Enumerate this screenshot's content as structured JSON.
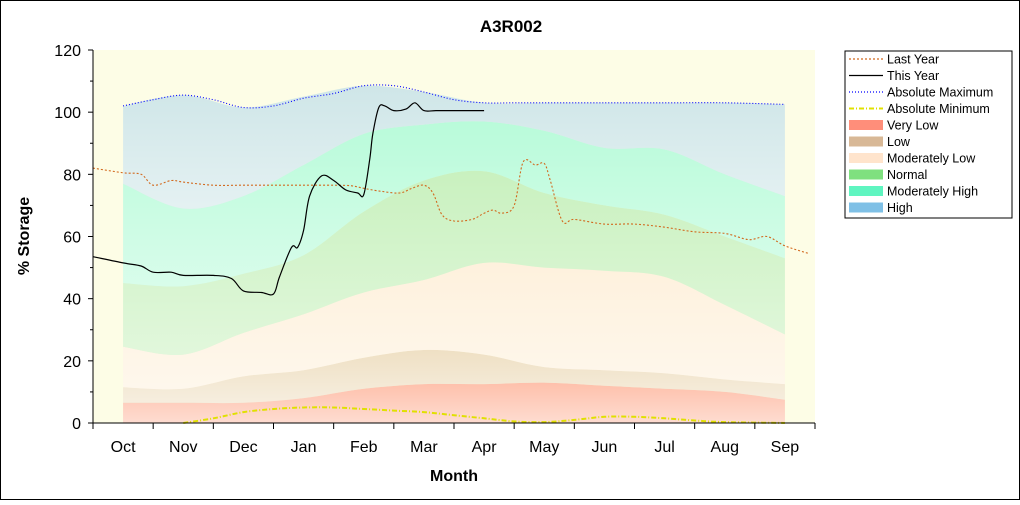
{
  "chart_data": {
    "type": "area",
    "title": "A3R002",
    "xlabel": "Month",
    "ylabel": "% Storage",
    "ylim": [
      0,
      120
    ],
    "yticks": [
      0,
      20,
      40,
      60,
      80,
      100,
      120
    ],
    "xlim": [
      -0.5,
      11.5
    ],
    "categories": [
      "Oct",
      "Nov",
      "Dec",
      "Jan",
      "Feb",
      "Mar",
      "Apr",
      "May",
      "Jun",
      "Jul",
      "Aug",
      "Sep"
    ],
    "legend_position": "right",
    "bands": [
      {
        "name": "Very Low",
        "color": "#ff8e7a",
        "x": [
          0,
          1,
          2,
          3,
          4,
          5,
          6,
          7,
          8,
          9,
          10,
          11
        ],
        "lower": [
          0,
          0,
          0,
          0,
          0,
          0,
          0,
          0,
          0,
          0,
          0,
          0
        ],
        "upper": [
          6.5,
          6.5,
          6.5,
          8,
          11,
          12.5,
          12.5,
          13,
          12,
          11,
          10,
          7.5
        ]
      },
      {
        "name": "Low",
        "color": "#e3c9a8",
        "x": [
          0,
          1,
          2,
          3,
          4,
          5,
          6,
          7,
          8,
          9,
          10,
          11
        ],
        "lower": [
          6.5,
          6.5,
          6.5,
          8,
          11,
          12.5,
          12.5,
          13,
          12,
          11,
          10,
          7.5
        ],
        "upper": [
          11.5,
          11,
          15,
          17,
          21,
          23.5,
          22,
          18,
          17,
          16,
          14,
          12.5
        ]
      },
      {
        "name": "Moderately Low",
        "color": "#ffe8d6",
        "x": [
          0,
          1,
          2,
          3,
          4,
          5,
          6,
          7,
          8,
          9,
          10,
          11
        ],
        "lower": [
          11.5,
          11,
          15,
          17,
          21,
          23.5,
          22,
          18,
          17,
          16,
          14,
          12.5
        ],
        "upper": [
          24.5,
          22,
          29,
          35,
          42,
          46,
          51.5,
          50,
          49,
          47,
          38,
          28.5
        ]
      },
      {
        "name": "Normal",
        "color": "#9ee89e",
        "x": [
          0,
          1,
          2,
          3,
          4,
          5,
          6,
          7,
          8,
          9,
          10,
          11
        ],
        "lower": [
          24.5,
          22,
          29,
          35,
          42,
          46,
          51.5,
          50,
          49,
          47,
          38,
          28.5
        ],
        "upper": [
          45,
          44,
          48,
          54,
          68,
          78,
          81,
          74,
          70,
          67,
          60,
          53
        ]
      },
      {
        "name": "Moderately High",
        "color": "#82fad0",
        "x": [
          0,
          1,
          2,
          3,
          4,
          5,
          6,
          7,
          8,
          9,
          10,
          11
        ],
        "lower": [
          45,
          44,
          48,
          54,
          68,
          78,
          81,
          74,
          70,
          67,
          60,
          53
        ],
        "upper": [
          77,
          69,
          73,
          83,
          93,
          96,
          97,
          94,
          88.5,
          88,
          80,
          73
        ]
      },
      {
        "name": "High",
        "color": "#a9d3ea",
        "x": [
          0,
          1,
          2,
          3,
          4,
          5,
          6,
          7,
          8,
          9,
          10,
          11
        ],
        "lower": [
          77,
          69,
          73,
          83,
          93,
          96,
          97,
          94,
          88.5,
          88,
          80,
          73
        ],
        "upper": [
          102,
          105.5,
          101.5,
          105,
          108.5,
          106.5,
          103,
          103,
          103,
          103,
          103,
          102.5
        ]
      }
    ],
    "series": [
      {
        "name": "Last Year",
        "color": "#d2691e",
        "style": "dotted",
        "x": [
          -0.5,
          0,
          0.3,
          0.5,
          0.8,
          1,
          1.5,
          2,
          2.5,
          3,
          3.5,
          3.8,
          4,
          4.3,
          4.6,
          4.8,
          5,
          5.15,
          5.3,
          5.5,
          5.8,
          6,
          6.15,
          6.3,
          6.5,
          6.65,
          6.85,
          7,
          7.1,
          7.3,
          7.5,
          8,
          8.5,
          9,
          9.5,
          10,
          10.4,
          10.7,
          11,
          11.4
        ],
        "values": [
          82,
          80.5,
          80,
          76.5,
          78,
          77.5,
          76.5,
          76.5,
          76.5,
          76.5,
          76.5,
          76.3,
          75.5,
          74.5,
          74,
          75.5,
          76.5,
          74,
          67,
          65,
          65.5,
          67.5,
          68.5,
          67.5,
          70,
          84,
          83,
          83.5,
          78,
          65,
          65.5,
          64,
          64,
          63,
          61.5,
          61,
          59,
          60,
          57,
          54.5
        ]
      },
      {
        "name": "This Year",
        "color": "#000000",
        "style": "solid",
        "x": [
          -0.5,
          0,
          0.3,
          0.5,
          0.8,
          1,
          1.5,
          1.8,
          2,
          2.3,
          2.5,
          2.6,
          2.8,
          2.9,
          3,
          3.1,
          3.3,
          3.5,
          3.7,
          3.9,
          4,
          4.1,
          4.15,
          4.25,
          4.35,
          4.5,
          4.7,
          4.85,
          5,
          5.2,
          5.5,
          6
        ],
        "values": [
          53.5,
          51.5,
          50.5,
          48.5,
          48.5,
          47.5,
          47.5,
          46.5,
          42.5,
          42,
          41.5,
          47,
          56.5,
          56.5,
          62,
          73,
          79.5,
          78,
          75,
          74,
          73.5,
          85,
          93,
          101.5,
          102,
          100.5,
          101,
          103,
          100.5,
          100.5,
          100.5,
          100.5
        ]
      },
      {
        "name": "Absolute Maximum",
        "color": "#0000ff",
        "style": "dotted",
        "x": [
          0,
          0.5,
          1,
          1.5,
          2,
          2.5,
          3,
          3.5,
          4,
          4.5,
          5,
          5.5,
          6,
          6.5,
          7,
          8,
          9,
          10,
          11
        ],
        "values": [
          102,
          104,
          105.5,
          104,
          101.5,
          102,
          104.5,
          106,
          108.5,
          108.5,
          106.5,
          104,
          103,
          103,
          103,
          103,
          103,
          103,
          102.5
        ]
      },
      {
        "name": "Absolute Minimum",
        "color": "#e0e000",
        "style": "dashdot",
        "x": [
          1,
          1.5,
          2,
          2.5,
          3,
          3.5,
          4,
          4.5,
          5,
          5.5,
          6,
          6.5,
          7,
          7.5,
          8,
          8.5,
          9,
          9.5,
          10,
          11
        ],
        "values": [
          0,
          1.5,
          3.5,
          4.5,
          5,
          5,
          4.5,
          4,
          3.5,
          2.5,
          1.5,
          0.5,
          0.3,
          1,
          2,
          2,
          1.5,
          0.8,
          0.3,
          0
        ]
      }
    ],
    "legend": [
      {
        "label": "Last Year",
        "kind": "line",
        "color": "#d2691e",
        "dash": "2,2"
      },
      {
        "label": "This Year",
        "kind": "line",
        "color": "#000000",
        "dash": ""
      },
      {
        "label": "Absolute Maximum",
        "kind": "line",
        "color": "#0000ff",
        "dash": "1,2"
      },
      {
        "label": "Absolute Minimum",
        "kind": "line",
        "color": "#e0e000",
        "dash": "5,2,1,2"
      },
      {
        "label": "Very Low",
        "kind": "swatch",
        "color": "#ff8e7a"
      },
      {
        "label": "Low",
        "kind": "swatch",
        "color": "#d8b896"
      },
      {
        "label": "Moderately Low",
        "kind": "swatch",
        "color": "#ffe4cc"
      },
      {
        "label": "Normal",
        "kind": "swatch",
        "color": "#7fe07f"
      },
      {
        "label": "Moderately High",
        "kind": "swatch",
        "color": "#5ff5c0"
      },
      {
        "label": "High",
        "kind": "swatch",
        "color": "#7fc0e6"
      }
    ],
    "colors": {
      "plot_background": "#fdfde6",
      "axis": "#000000"
    }
  }
}
